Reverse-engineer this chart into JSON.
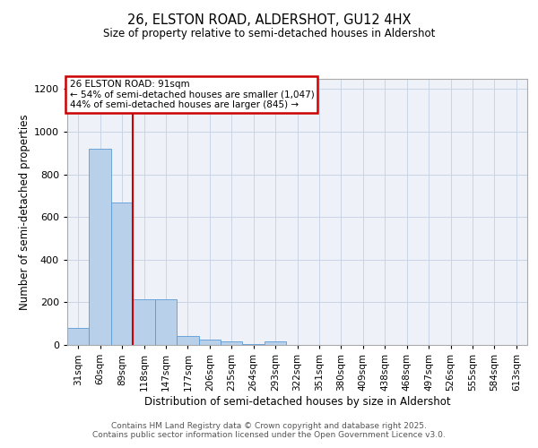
{
  "title_line1": "26, ELSTON ROAD, ALDERSHOT, GU12 4HX",
  "title_line2": "Size of property relative to semi-detached houses in Aldershot",
  "xlabel": "Distribution of semi-detached houses by size in Aldershot",
  "ylabel": "Number of semi-detached properties",
  "categories": [
    "31sqm",
    "60sqm",
    "89sqm",
    "118sqm",
    "147sqm",
    "177sqm",
    "206sqm",
    "235sqm",
    "264sqm",
    "293sqm",
    "322sqm",
    "351sqm",
    "380sqm",
    "409sqm",
    "438sqm",
    "468sqm",
    "497sqm",
    "526sqm",
    "555sqm",
    "584sqm",
    "613sqm"
  ],
  "values": [
    80,
    920,
    670,
    215,
    215,
    40,
    25,
    15,
    5,
    15,
    0,
    0,
    0,
    0,
    0,
    0,
    0,
    0,
    0,
    0,
    0
  ],
  "bar_color": "#b8d0ea",
  "bar_edge_color": "#5b9bd5",
  "highlight_line_color": "#cc0000",
  "highlight_bin_index": 2,
  "annotation_line1": "26 ELSTON ROAD: 91sqm",
  "annotation_line2": "← 54% of semi-detached houses are smaller (1,047)",
  "annotation_line3": "44% of semi-detached houses are larger (845) →",
  "annotation_box_edgecolor": "#cc0000",
  "footer_text": "Contains HM Land Registry data © Crown copyright and database right 2025.\nContains public sector information licensed under the Open Government Licence v3.0.",
  "ylim": [
    0,
    1250
  ],
  "yticks": [
    0,
    200,
    400,
    600,
    800,
    1000,
    1200
  ],
  "plot_bg_color": "#eef2f8",
  "grid_color": "#c8d4e4"
}
